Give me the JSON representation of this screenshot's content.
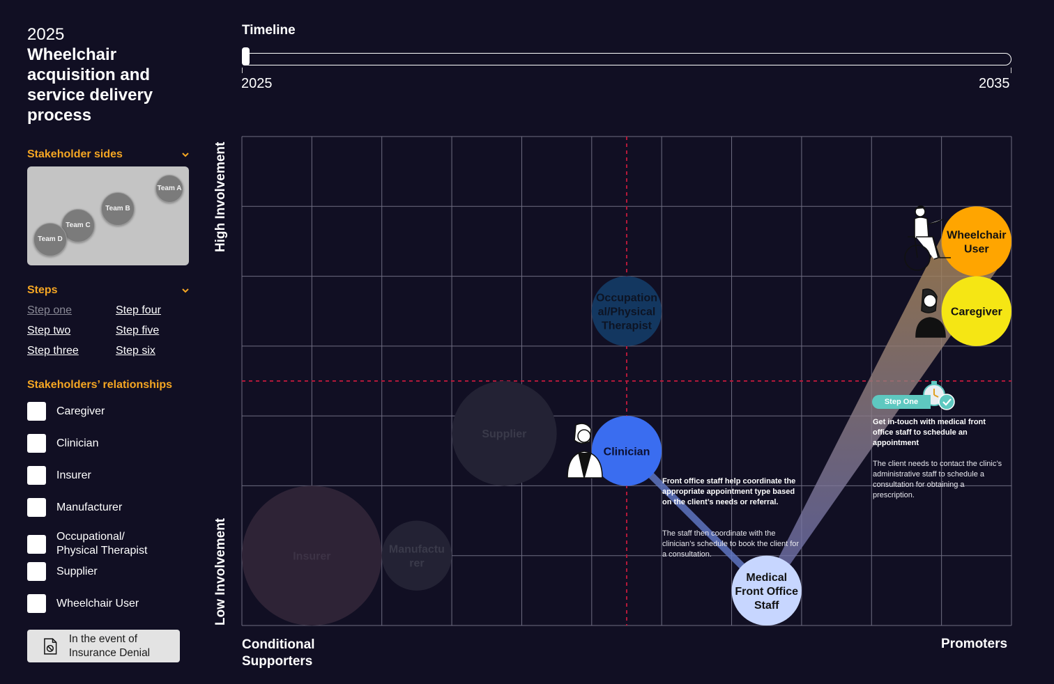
{
  "sidebar": {
    "year": "2025",
    "title": "Wheelchair acquisition and service delivery process",
    "stakeholder_sides": {
      "heading": "Stakeholder sides",
      "teams": [
        "Team A",
        "Team B",
        "Team C",
        "Team D"
      ]
    },
    "steps": {
      "heading": "Steps",
      "items": [
        "Step one",
        "Step two",
        "Step three",
        "Step four",
        "Step five",
        "Step six"
      ],
      "active_index": 0
    },
    "relationships": {
      "heading": "Stakeholders’ relationships",
      "items": [
        "Caregiver",
        "Clinician",
        "Insurer",
        "Manufacturer",
        "Occupational/ Physical Therapist",
        "Supplier",
        "Wheelchair User"
      ]
    },
    "denial_button": "In the event of Insurance Denial"
  },
  "timeline": {
    "title": "Timeline",
    "start": "2025",
    "end": "2035",
    "current": 2025
  },
  "axes": {
    "y_high": "High Involvement",
    "y_low": "Low Involvement",
    "x_left": "Conditional Supporters",
    "x_right": "Promoters"
  },
  "colors": {
    "background": "#110f23",
    "accent": "#f5a623",
    "grid": "#6f6e82",
    "divider": "#b3193a",
    "wheelchair_user": "#ffa500",
    "caregiver": "#f5e614",
    "clinician": "#3a6df0",
    "front_office": "#c7d6ff",
    "step_pill": "#5ec8c0"
  },
  "chart_data": {
    "type": "bubble",
    "grid": true,
    "x_range": [
      0,
      11
    ],
    "y_range": [
      0,
      7
    ],
    "grid_cells": {
      "columns": 11,
      "rows": 7
    },
    "divider": {
      "x": 5.5,
      "y": 3.5
    },
    "bubbles": [
      {
        "name": "Wheelchair User",
        "label": "Wheelchair User",
        "x": 10.5,
        "y": 5.5,
        "r": 0.5,
        "color": "#ffa500",
        "text_color": "#111111",
        "active": true
      },
      {
        "name": "Caregiver",
        "label": "Caregiver",
        "x": 10.5,
        "y": 4.5,
        "r": 0.5,
        "color": "#f5e614",
        "text_color": "#111111",
        "active": true
      },
      {
        "name": "Occupational/Physical Therapist",
        "label": "Occupation al/Physical Therapist",
        "x": 5.5,
        "y": 4.5,
        "r": 0.5,
        "color": "#133760",
        "text_color": "#0d1424",
        "active": false
      },
      {
        "name": "Supplier",
        "label": "Supplier",
        "x": 3.75,
        "y": 2.75,
        "r": 0.75,
        "color": "#232234",
        "text_color": "#3a3a4a",
        "active": false
      },
      {
        "name": "Clinician",
        "label": "Clinician",
        "x": 5.5,
        "y": 2.5,
        "r": 0.5,
        "color": "#3a6df0",
        "text_color": "#0b1033",
        "active": true
      },
      {
        "name": "Manufacturer",
        "label": "Manufactu rer",
        "x": 2.5,
        "y": 1.0,
        "r": 0.5,
        "color": "#232234",
        "text_color": "#3a3a4a",
        "active": false
      },
      {
        "name": "Insurer",
        "label": "Insurer",
        "x": 1.0,
        "y": 1.0,
        "r": 1.0,
        "color": "#2e2336",
        "text_color": "#3d3346",
        "active": false
      },
      {
        "name": "Medical Front Office Staff",
        "label": "Medical Front Office Staff",
        "x": 7.5,
        "y": 0.5,
        "r": 0.5,
        "color": "#c7d6ff",
        "text_color": "#111111",
        "active": true
      }
    ],
    "connections": [
      {
        "from": "Wheelchair User",
        "to": "Medical Front Office Staff"
      },
      {
        "from": "Medical Front Office Staff",
        "to": "Clinician"
      }
    ],
    "annotations": [
      {
        "id": "front-office",
        "heading": "Front office staff help coordinate the appropriate appointment type based on the client’s needs or referral.",
        "body": "The staff then coordinate with the clinician’s schedule to book the client for a consultation."
      },
      {
        "id": "step-one",
        "pill": "Step One",
        "heading": "Get in-touch with medical front office staff to schedule an appointment",
        "body": "The client needs to contact the clinic’s administrative staff to schedule a consultation for obtaining a prescription."
      }
    ]
  }
}
